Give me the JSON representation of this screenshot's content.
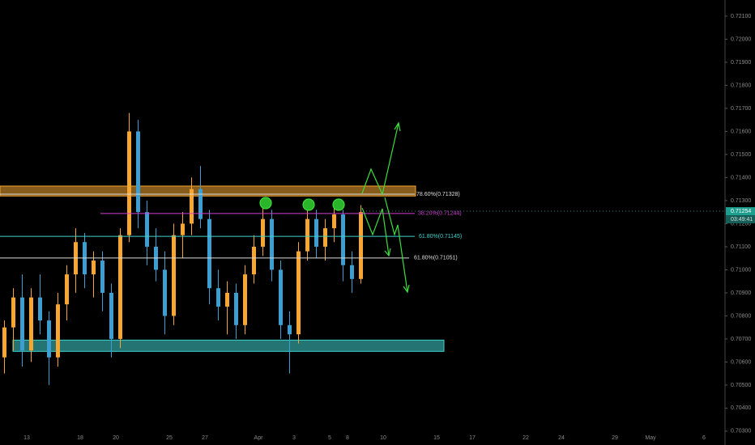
{
  "chart_data": {
    "type": "candlestick",
    "categories": [
      null,
      null,
      "13",
      null,
      null,
      null,
      null,
      null,
      "18",
      null,
      null,
      null,
      "20",
      null,
      null,
      null,
      null,
      null,
      "25",
      null,
      null,
      null,
      "27",
      null,
      null,
      null,
      null,
      null,
      "Apr",
      null,
      null,
      null,
      "3",
      null,
      null,
      null,
      "5",
      null,
      "8",
      null,
      null,
      null,
      "10",
      null,
      null,
      null,
      null,
      null,
      "15",
      null,
      null,
      null,
      "17",
      null,
      null,
      null,
      null,
      null,
      "22",
      null,
      null,
      null,
      "24",
      null,
      null,
      null,
      null,
      null,
      "29",
      null,
      null,
      null,
      "May",
      null,
      null,
      null,
      null,
      null,
      "6",
      null
    ],
    "open": [
      0.7062,
      0.7075,
      0.7088,
      0.7065,
      0.7088,
      0.7078,
      0.7062,
      0.7085,
      0.7098,
      0.7112,
      0.7098,
      0.7104,
      0.709,
      0.707,
      0.7115,
      0.716,
      0.7125,
      0.711,
      0.71,
      0.708,
      0.7115,
      0.712,
      0.7135,
      0.7122,
      0.7092,
      0.7084,
      0.709,
      0.7076,
      0.7098,
      0.711,
      0.7122,
      0.71,
      0.7076,
      0.7072,
      0.7108,
      0.7122,
      0.711,
      0.7118,
      0.7124,
      0.7102,
      0.7096,
      null,
      null,
      null,
      null,
      null,
      null,
      null,
      null,
      null,
      null,
      null,
      null,
      null,
      null,
      null,
      null,
      null,
      null,
      null,
      null,
      null,
      null,
      null,
      null,
      null,
      null,
      null,
      null,
      null,
      null,
      null,
      null,
      null,
      null,
      null,
      null,
      null,
      null,
      null
    ],
    "high": [
      0.7078,
      0.7092,
      0.7098,
      0.7092,
      0.7098,
      0.7082,
      0.709,
      0.7102,
      0.7118,
      0.7116,
      0.7108,
      0.7108,
      0.7094,
      0.7118,
      0.7168,
      0.7165,
      0.713,
      0.7118,
      0.7108,
      0.712,
      0.7125,
      0.714,
      0.7145,
      0.7126,
      0.71,
      0.7095,
      0.7094,
      0.7102,
      0.7115,
      0.7128,
      0.7126,
      0.7104,
      0.7082,
      0.7112,
      0.7128,
      0.7126,
      0.7122,
      0.7128,
      0.7126,
      0.7108,
      0.7128,
      null,
      null,
      null,
      null,
      null,
      null,
      null,
      null,
      null,
      null,
      null,
      null,
      null,
      null,
      null,
      null,
      null,
      null,
      null,
      null,
      null,
      null,
      null,
      null,
      null,
      null,
      null,
      null,
      null,
      null,
      null,
      null,
      null,
      null,
      null,
      null,
      null,
      null,
      null
    ],
    "low": [
      0.7055,
      0.7065,
      0.7058,
      0.706,
      0.7072,
      0.705,
      0.7058,
      0.7078,
      0.709,
      0.7092,
      0.7088,
      0.7082,
      0.7062,
      0.7066,
      0.7112,
      0.7118,
      0.7102,
      0.7095,
      0.7072,
      0.7076,
      0.7105,
      0.7115,
      0.7118,
      0.7085,
      0.7078,
      0.7072,
      0.707,
      0.7072,
      0.7094,
      0.7106,
      0.7095,
      0.707,
      0.7055,
      0.7068,
      0.7104,
      0.7105,
      0.7104,
      0.7112,
      0.7095,
      0.709,
      0.7094,
      null,
      null,
      null,
      null,
      null,
      null,
      null,
      null,
      null,
      null,
      null,
      null,
      null,
      null,
      null,
      null,
      null,
      null,
      null,
      null,
      null,
      null,
      null,
      null,
      null,
      null,
      null,
      null,
      null,
      null,
      null,
      null,
      null,
      null,
      null,
      null,
      null,
      null,
      null
    ],
    "close": [
      0.7075,
      0.7088,
      0.7065,
      0.7088,
      0.7078,
      0.7062,
      0.7085,
      0.7098,
      0.7112,
      0.7098,
      0.7104,
      0.709,
      0.707,
      0.7115,
      0.716,
      0.7125,
      0.711,
      0.71,
      0.708,
      0.7115,
      0.712,
      0.7135,
      0.7122,
      0.7092,
      0.7084,
      0.709,
      0.7076,
      0.7098,
      0.711,
      0.7122,
      0.71,
      0.7076,
      0.7072,
      0.7108,
      0.7122,
      0.711,
      0.7118,
      0.7124,
      0.7102,
      0.7096,
      0.7125,
      null,
      null,
      null,
      null,
      null,
      null,
      null,
      null,
      null,
      null,
      null,
      null,
      null,
      null,
      null,
      null,
      null,
      null,
      null,
      null,
      null,
      null,
      null,
      null,
      null,
      null,
      null,
      null,
      null,
      null,
      null,
      null,
      null,
      null,
      null,
      null,
      null,
      null,
      null
    ],
    "up_color": "#f6a631",
    "down_color": "#3d9fd1",
    "ylim": [
      0.7024,
      0.7217
    ],
    "yticks": [
      {
        "value": 0.703,
        "label": "0.70300"
      },
      {
        "value": 0.704,
        "label": "0.70400"
      },
      {
        "value": 0.705,
        "label": "0.70500"
      },
      {
        "value": 0.706,
        "label": "0.70600"
      },
      {
        "value": 0.707,
        "label": "0.70700"
      },
      {
        "value": 0.708,
        "label": "0.70800"
      },
      {
        "value": 0.709,
        "label": "0.70900"
      },
      {
        "value": 0.71,
        "label": "0.71000"
      },
      {
        "value": 0.711,
        "label": "0.71100"
      },
      {
        "value": 0.712,
        "label": "0.71200"
      },
      {
        "value": 0.713,
        "label": "0.71300"
      },
      {
        "value": 0.714,
        "label": "0.71400"
      },
      {
        "value": 0.715,
        "label": "0.71500"
      },
      {
        "value": 0.716,
        "label": "0.71600"
      },
      {
        "value": 0.717,
        "label": "0.71700"
      },
      {
        "value": 0.718,
        "label": "0.71800"
      },
      {
        "value": 0.719,
        "label": "0.71900"
      },
      {
        "value": 0.72,
        "label": "0.72000"
      },
      {
        "value": 0.721,
        "label": "0.72100"
      }
    ],
    "zones": [
      {
        "from": 0.7132,
        "to": 0.71363,
        "color": "#f6a631"
      },
      {
        "from": 0.70646,
        "to": 0.70695,
        "color": "#3fd3d0"
      }
    ],
    "levels": [
      {
        "value": 0.71328,
        "label": "78.60%(0.71328)",
        "color": "#dddddd"
      },
      {
        "value": 0.71244,
        "label": "38.20%(0.71244)",
        "color": "#d23fd2"
      },
      {
        "value": 0.71145,
        "label": "61.80%(0.71145)",
        "color": "#3fd3d0"
      },
      {
        "value": 0.71051,
        "label": "61.80%(0.71051)",
        "color": "#dddddd"
      }
    ],
    "last_price": 0.71254,
    "countdown": "03:49:41"
  }
}
